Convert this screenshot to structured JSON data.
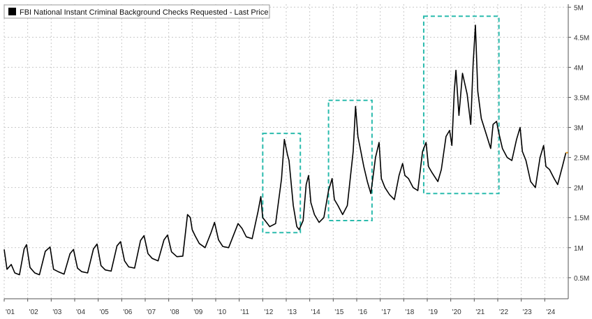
{
  "chart_data": {
    "type": "line",
    "legend": {
      "label": "FBI National Instant Criminal Background Checks Requested - Last Price",
      "placement": "top-left",
      "swatch_color": "#000000"
    },
    "x_tick_labels": [
      "'01",
      "'02",
      "'03",
      "'04",
      "'05",
      "'06",
      "'07",
      "'08",
      "'09",
      "'10",
      "'11",
      "'12",
      "'13",
      "'14",
      "'15",
      "'16",
      "'17",
      "'18",
      "'19",
      "'20",
      "'21",
      "'22",
      "'23",
      "'24"
    ],
    "x_tick_years": [
      2001,
      2002,
      2003,
      2004,
      2005,
      2006,
      2007,
      2008,
      2009,
      2010,
      2011,
      2012,
      2013,
      2014,
      2015,
      2016,
      2017,
      2018,
      2019,
      2020,
      2021,
      2022,
      2023,
      2024
    ],
    "xlim": [
      2001.0,
      2025.0
    ],
    "y_tick_labels": [
      "0.5M",
      "1M",
      "1.5M",
      "2M",
      "2.5M",
      "3M",
      "3.5M",
      "4M",
      "4.5M",
      "5M"
    ],
    "y_tick_values": [
      0.5,
      1.0,
      1.5,
      2.0,
      2.5,
      3.0,
      3.5,
      4.0,
      4.5,
      5.0
    ],
    "ylim": [
      0.15,
      5.05
    ],
    "y_unit": "M",
    "grid": true,
    "y_axis_side": "right",
    "line_color": "#000000",
    "last_price_marker_color": "#f5a623",
    "highlight_color": "#2bbbad",
    "highlight_boxes": [
      {
        "x_start": 2012.0,
        "x_end": 2013.6,
        "y_low": 1.25,
        "y_high": 2.9
      },
      {
        "x_start": 2014.8,
        "x_end": 2016.65,
        "y_low": 1.45,
        "y_high": 3.45
      },
      {
        "x_start": 2018.85,
        "x_end": 2022.05,
        "y_low": 1.9,
        "y_high": 4.85
      }
    ],
    "series": [
      {
        "points": [
          [
            2001.0,
            0.97
          ],
          [
            2001.12,
            0.64
          ],
          [
            2001.3,
            0.72
          ],
          [
            2001.45,
            0.58
          ],
          [
            2001.65,
            0.55
          ],
          [
            2001.85,
            0.98
          ],
          [
            2001.95,
            1.05
          ],
          [
            2002.1,
            0.67
          ],
          [
            2002.3,
            0.58
          ],
          [
            2002.5,
            0.55
          ],
          [
            2002.75,
            0.94
          ],
          [
            2002.95,
            1.01
          ],
          [
            2003.1,
            0.64
          ],
          [
            2003.3,
            0.6
          ],
          [
            2003.55,
            0.56
          ],
          [
            2003.8,
            0.9
          ],
          [
            2003.95,
            0.97
          ],
          [
            2004.12,
            0.66
          ],
          [
            2004.3,
            0.6
          ],
          [
            2004.55,
            0.58
          ],
          [
            2004.8,
            0.98
          ],
          [
            2004.95,
            1.06
          ],
          [
            2005.12,
            0.7
          ],
          [
            2005.3,
            0.63
          ],
          [
            2005.55,
            0.61
          ],
          [
            2005.8,
            1.03
          ],
          [
            2005.95,
            1.1
          ],
          [
            2006.12,
            0.78
          ],
          [
            2006.3,
            0.68
          ],
          [
            2006.55,
            0.66
          ],
          [
            2006.8,
            1.12
          ],
          [
            2006.95,
            1.2
          ],
          [
            2007.12,
            0.9
          ],
          [
            2007.3,
            0.82
          ],
          [
            2007.55,
            0.78
          ],
          [
            2007.8,
            1.13
          ],
          [
            2007.95,
            1.21
          ],
          [
            2008.12,
            0.93
          ],
          [
            2008.35,
            0.85
          ],
          [
            2008.6,
            0.86
          ],
          [
            2008.8,
            1.55
          ],
          [
            2008.92,
            1.5
          ],
          [
            2009.0,
            1.3
          ],
          [
            2009.12,
            1.2
          ],
          [
            2009.3,
            1.07
          ],
          [
            2009.55,
            1.0
          ],
          [
            2009.8,
            1.25
          ],
          [
            2009.95,
            1.42
          ],
          [
            2010.12,
            1.13
          ],
          [
            2010.3,
            1.02
          ],
          [
            2010.55,
            1.0
          ],
          [
            2010.8,
            1.25
          ],
          [
            2010.95,
            1.4
          ],
          [
            2011.12,
            1.32
          ],
          [
            2011.3,
            1.18
          ],
          [
            2011.55,
            1.15
          ],
          [
            2011.8,
            1.6
          ],
          [
            2011.92,
            1.85
          ],
          [
            2012.0,
            1.5
          ],
          [
            2012.1,
            1.45
          ],
          [
            2012.3,
            1.35
          ],
          [
            2012.55,
            1.4
          ],
          [
            2012.8,
            2.15
          ],
          [
            2012.92,
            2.8
          ],
          [
            2013.05,
            2.55
          ],
          [
            2013.12,
            2.45
          ],
          [
            2013.3,
            1.7
          ],
          [
            2013.45,
            1.35
          ],
          [
            2013.55,
            1.3
          ],
          [
            2013.72,
            1.45
          ],
          [
            2013.85,
            2.05
          ],
          [
            2013.95,
            2.2
          ],
          [
            2014.05,
            1.75
          ],
          [
            2014.2,
            1.55
          ],
          [
            2014.4,
            1.42
          ],
          [
            2014.6,
            1.5
          ],
          [
            2014.8,
            1.95
          ],
          [
            2014.95,
            2.15
          ],
          [
            2015.05,
            1.8
          ],
          [
            2015.2,
            1.7
          ],
          [
            2015.4,
            1.55
          ],
          [
            2015.6,
            1.7
          ],
          [
            2015.85,
            2.6
          ],
          [
            2015.95,
            3.35
          ],
          [
            2016.05,
            2.85
          ],
          [
            2016.15,
            2.65
          ],
          [
            2016.3,
            2.35
          ],
          [
            2016.45,
            2.1
          ],
          [
            2016.6,
            1.9
          ],
          [
            2016.8,
            2.5
          ],
          [
            2016.95,
            2.75
          ],
          [
            2017.05,
            2.15
          ],
          [
            2017.2,
            2.0
          ],
          [
            2017.4,
            1.88
          ],
          [
            2017.6,
            1.8
          ],
          [
            2017.8,
            2.2
          ],
          [
            2017.95,
            2.4
          ],
          [
            2018.05,
            2.2
          ],
          [
            2018.2,
            2.15
          ],
          [
            2018.4,
            2.0
          ],
          [
            2018.6,
            1.95
          ],
          [
            2018.8,
            2.6
          ],
          [
            2018.95,
            2.75
          ],
          [
            2019.05,
            2.35
          ],
          [
            2019.2,
            2.25
          ],
          [
            2019.45,
            2.1
          ],
          [
            2019.6,
            2.3
          ],
          [
            2019.8,
            2.85
          ],
          [
            2019.95,
            2.95
          ],
          [
            2020.05,
            2.7
          ],
          [
            2020.15,
            3.6
          ],
          [
            2020.22,
            3.95
          ],
          [
            2020.35,
            3.2
          ],
          [
            2020.5,
            3.9
          ],
          [
            2020.7,
            3.55
          ],
          [
            2020.85,
            3.05
          ],
          [
            2020.95,
            4.05
          ],
          [
            2021.05,
            4.7
          ],
          [
            2021.15,
            3.6
          ],
          [
            2021.3,
            3.15
          ],
          [
            2021.5,
            2.9
          ],
          [
            2021.7,
            2.65
          ],
          [
            2021.8,
            3.05
          ],
          [
            2021.95,
            3.1
          ],
          [
            2022.05,
            2.9
          ],
          [
            2022.2,
            2.65
          ],
          [
            2022.4,
            2.5
          ],
          [
            2022.6,
            2.45
          ],
          [
            2022.8,
            2.8
          ],
          [
            2022.95,
            3.0
          ],
          [
            2023.05,
            2.6
          ],
          [
            2023.2,
            2.45
          ],
          [
            2023.4,
            2.1
          ],
          [
            2023.6,
            2.0
          ],
          [
            2023.8,
            2.5
          ],
          [
            2023.95,
            2.7
          ],
          [
            2024.05,
            2.35
          ],
          [
            2024.2,
            2.3
          ],
          [
            2024.4,
            2.15
          ],
          [
            2024.55,
            2.05
          ],
          [
            2024.75,
            2.35
          ],
          [
            2024.9,
            2.58
          ]
        ]
      }
    ]
  }
}
